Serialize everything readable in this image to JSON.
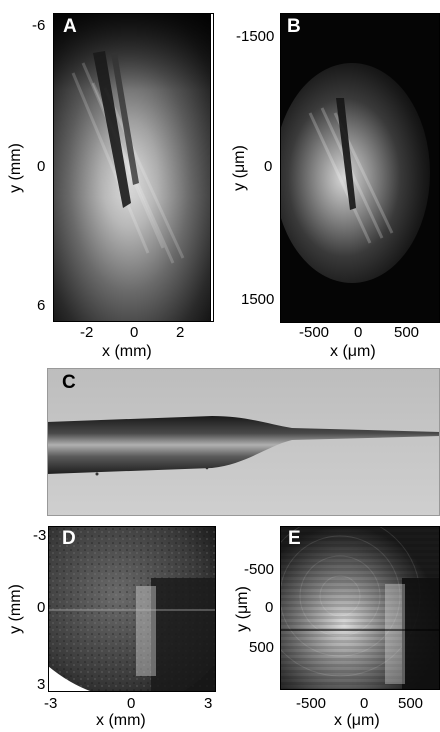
{
  "panels": {
    "A": {
      "letter": "A",
      "x_ticks": [
        "-2",
        "0",
        "2"
      ],
      "y_ticks": [
        "-6",
        "0",
        "6"
      ],
      "xlabel": "x (mm)",
      "ylabel": "y (mm)"
    },
    "B": {
      "letter": "B",
      "x_ticks": [
        "-500",
        "0",
        "500"
      ],
      "y_ticks": [
        "-1500",
        "0",
        "1500"
      ],
      "xlabel": "x (μm)",
      "ylabel": "y (μm)"
    },
    "C": {
      "letter": "C"
    },
    "D": {
      "letter": "D",
      "x_ticks": [
        "-3",
        "0",
        "3"
      ],
      "y_ticks": [
        "-3",
        "0",
        "3"
      ],
      "xlabel": "x (mm)",
      "ylabel": "y (mm)"
    },
    "E": {
      "letter": "E",
      "x_ticks": [
        "-500",
        "0",
        "500"
      ],
      "y_ticks": [
        "-500",
        "0",
        "500"
      ],
      "xlabel": "x (μm)",
      "ylabel": "y (μm)"
    }
  }
}
